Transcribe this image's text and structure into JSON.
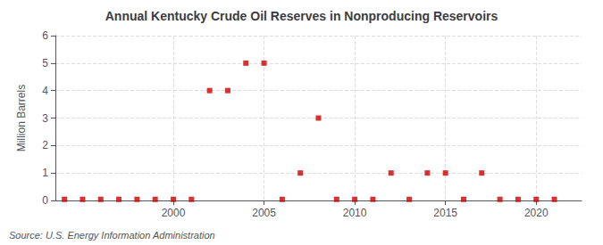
{
  "chart_data": {
    "type": "scatter",
    "title": "Annual Kentucky Crude Oil Reserves in Nonproducing Reservoirs",
    "ylabel": "Million Barrels",
    "annotation": "Source: U.S. Energy Information Administration",
    "color": "#cc0000",
    "marker": "square",
    "grid": true,
    "xlim": [
      1993.5,
      2022.5
    ],
    "ylim": [
      0,
      6
    ],
    "xticks": [
      2000,
      2005,
      2010,
      2015,
      2020
    ],
    "yticks": [
      0,
      1,
      2,
      3,
      4,
      5,
      6
    ],
    "x": [
      1994,
      1995,
      1996,
      1997,
      1998,
      1999,
      2000,
      2001,
      2002,
      2003,
      2004,
      2005,
      2006,
      2007,
      2008,
      2009,
      2010,
      2011,
      2012,
      2013,
      2014,
      2015,
      2016,
      2017,
      2018,
      2019,
      2020,
      2021
    ],
    "values": [
      0.04,
      0.04,
      0.04,
      0.04,
      0.04,
      0.04,
      0.04,
      0.04,
      4.0,
      4.0,
      5.0,
      5.0,
      0.04,
      1.0,
      3.0,
      0.04,
      0.04,
      0.04,
      1.0,
      0.04,
      1.0,
      1.0,
      0.04,
      1.0,
      0.04,
      0.04,
      0.04,
      0.04
    ]
  }
}
